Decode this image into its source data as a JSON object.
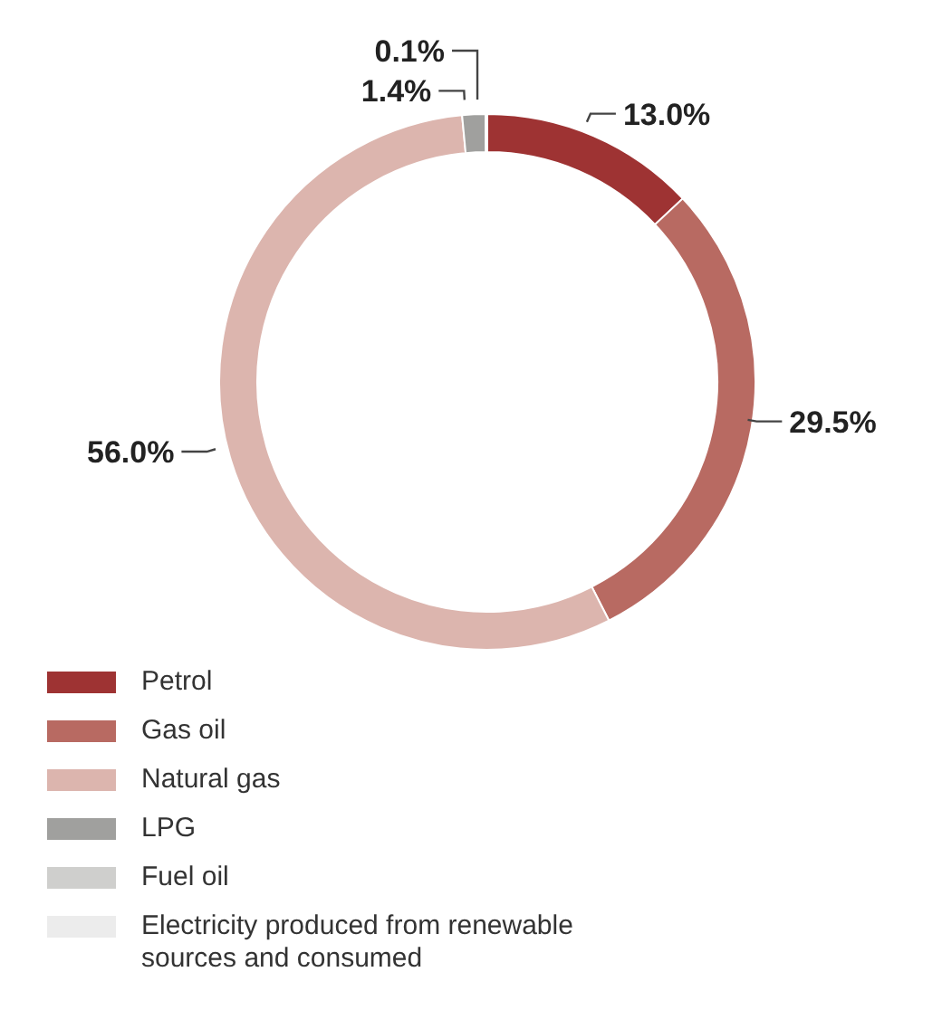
{
  "chart_data": {
    "type": "donut",
    "categories": [
      "Petrol",
      "Gas oil",
      "Natural gas",
      "LPG",
      "Fuel oil",
      "Electricity produced from renewable sources and consumed"
    ],
    "values": [
      13.0,
      29.5,
      56.0,
      1.4,
      0.1,
      null
    ],
    "value_labels": [
      "13.0%",
      "29.5%",
      "56.0%",
      "1.4%",
      "0.1%",
      null
    ],
    "colors": [
      "#9e3333",
      "#b86a62",
      "#dcb5ae",
      "#a0a09e",
      "#cfcfcd",
      "#ececec"
    ],
    "legend": "bottom left"
  }
}
